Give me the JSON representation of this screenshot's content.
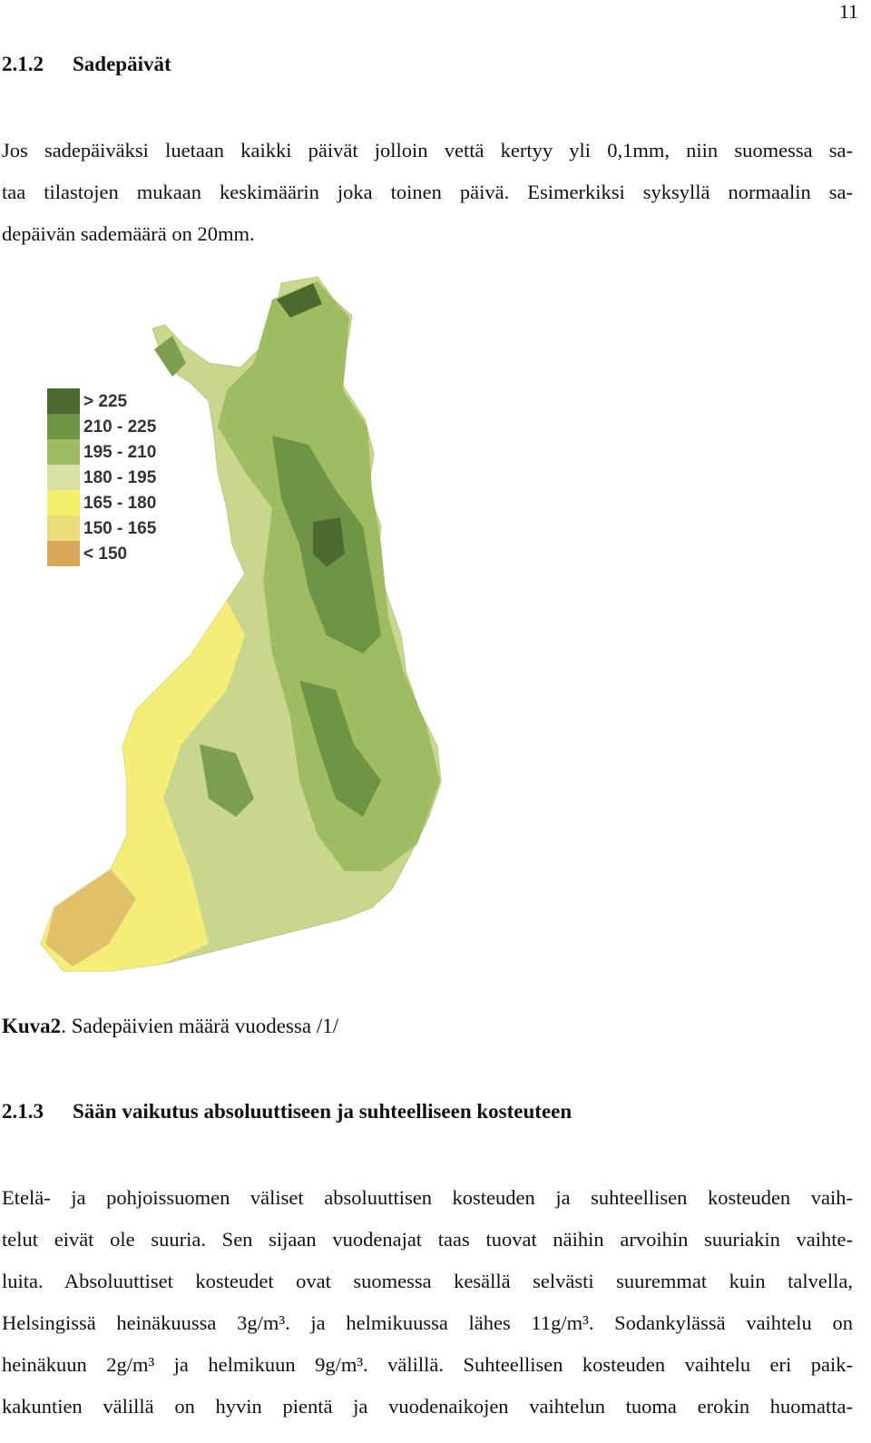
{
  "page_number": "11",
  "section_1": {
    "number": "2.1.2",
    "title": "Sadepäivät"
  },
  "paragraph_1": [
    "Jos sadepäiväksi luetaan kaikki päivät jolloin vettä kertyy yli 0,1mm, niin suomessa sa-",
    "taa tilastojen mukaan keskimäärin joka toinen päivä. Esimerkiksi syksyllä normaalin sa-",
    "depäivän sademäärä on 20mm."
  ],
  "figure": {
    "legend": [
      {
        "label": "> 225",
        "color": "#4b6a30"
      },
      {
        "label": "210 - 225",
        "color": "#6f9446"
      },
      {
        "label": "195 - 210",
        "color": "#9fbc63"
      },
      {
        "label": "180 - 195",
        "color": "#d9e0a4"
      },
      {
        "label": "165 - 180",
        "color": "#f5f06a"
      },
      {
        "label": "150 - 165",
        "color": "#eadc78"
      },
      {
        "label": "< 150",
        "color": "#d9a85a"
      }
    ],
    "caption": {
      "label": "Kuva2",
      "text": ". Sadepäivien määrä vuodessa /1/"
    }
  },
  "section_2": {
    "number": "2.1.3",
    "title": "Sään vaikutus absoluuttiseen ja suhteelliseen kosteuteen"
  },
  "paragraph_2": [
    "Etelä- ja pohjoissuomen väliset absoluuttisen kosteuden ja suhteellisen kosteuden vaih-",
    "telut eivät ole suuria. Sen sijaan vuodenajat taas tuovat näihin arvoihin suuriakin vaihte-",
    "luita. Absoluuttiset kosteudet ovat suomessa kesällä selvästi suuremmat kuin talvella,",
    "Helsingissä heinäkuussa 3g/m³.  ja helmikuussa lähes 11g/m³. Sodankylässä vaihtelu on",
    "heinäkuun 2g/m³ ja helmikuun 9g/m³.  välillä. Suhteellisen kosteuden vaihtelu eri paik-",
    "kakuntien välillä on hyvin pientä ja vuodenaikojen vaihtelun tuoma erokin huomatta-"
  ]
}
